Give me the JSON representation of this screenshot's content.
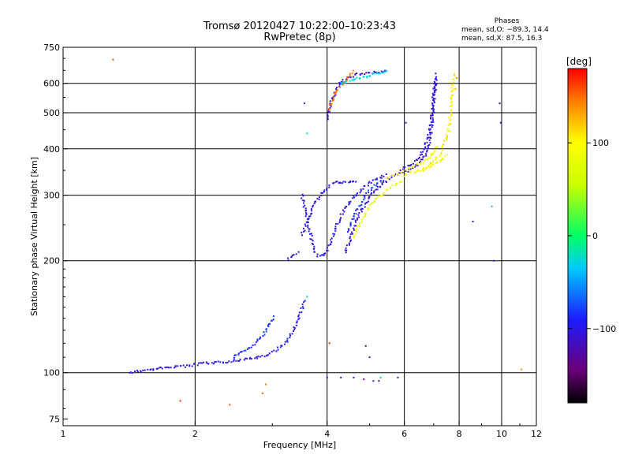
{
  "header": {
    "title": "Tromsø 20120427 10:22:00–10:23:43",
    "subtitle": "RwPretec (8p)"
  },
  "phases": {
    "heading": "Phases",
    "line_o": "mean, sd,O: −89.3, 14.4",
    "line_x": "mean, sd,X:  87.5, 16.3"
  },
  "colorbar": {
    "label": "[deg]",
    "ticks": [
      100,
      0,
      -100
    ],
    "tick_labels": [
      "100",
      "0",
      "−100"
    ],
    "range": [
      -180,
      180
    ]
  },
  "chart_data": {
    "type": "scatter",
    "xlabel": "Frequency [MHz]",
    "ylabel": "Stationary phase Virtual Height [km]",
    "xscale": "log",
    "yscale": "log",
    "xlim": [
      1,
      12
    ],
    "ylim": [
      72,
      750
    ],
    "xticks": [
      1,
      2,
      4,
      6,
      8,
      10,
      12
    ],
    "xtick_labels": [
      "1",
      "2",
      "4",
      "6",
      "8",
      "10",
      "12"
    ],
    "yticks": [
      75,
      100,
      200,
      300,
      400,
      500,
      600,
      750
    ],
    "ytick_labels": [
      "75",
      "100",
      "200",
      "300",
      "400",
      "500",
      "600",
      "750"
    ],
    "grid": true,
    "colorscale": "rainbow",
    "color_variable": "phase [deg]",
    "traces": [
      {
        "phase": -100,
        "points": [
          [
            1.42,
            100
          ],
          [
            1.5,
            101
          ],
          [
            1.6,
            102
          ],
          [
            1.7,
            103
          ],
          [
            1.8,
            104
          ],
          [
            1.9,
            104
          ],
          [
            2.0,
            105
          ],
          [
            2.1,
            106
          ],
          [
            2.2,
            106
          ],
          [
            2.35,
            107
          ],
          [
            2.5,
            108
          ],
          [
            2.65,
            109
          ],
          [
            2.8,
            110
          ],
          [
            2.95,
            111
          ]
        ]
      },
      {
        "phase": -95,
        "points": [
          [
            2.95,
            112
          ],
          [
            3.05,
            115
          ],
          [
            3.15,
            118
          ],
          [
            3.25,
            122
          ],
          [
            3.32,
            128
          ],
          [
            3.4,
            134
          ],
          [
            3.45,
            140
          ],
          [
            3.5,
            148
          ],
          [
            3.55,
            158
          ]
        ]
      },
      {
        "phase": -85,
        "points": [
          [
            2.45,
            110
          ],
          [
            2.55,
            113
          ],
          [
            2.65,
            116
          ],
          [
            2.75,
            120
          ],
          [
            2.85,
            126
          ],
          [
            2.95,
            134
          ],
          [
            3.05,
            142
          ]
        ]
      },
      {
        "phase": -105,
        "points": [
          [
            3.25,
            201
          ],
          [
            3.35,
            206
          ],
          [
            3.45,
            212
          ]
        ]
      },
      {
        "phase": -100,
        "points": [
          [
            3.5,
            235
          ],
          [
            3.6,
            255
          ],
          [
            3.7,
            275
          ],
          [
            3.8,
            292
          ],
          [
            3.9,
            305
          ],
          [
            4.0,
            315
          ],
          [
            4.1,
            322
          ],
          [
            4.2,
            325
          ],
          [
            4.35,
            325
          ],
          [
            4.5,
            325
          ],
          [
            4.7,
            326
          ]
        ]
      },
      {
        "phase": -100,
        "points": [
          [
            3.5,
            300
          ],
          [
            3.55,
            280
          ],
          [
            3.6,
            260
          ],
          [
            3.65,
            240
          ],
          [
            3.7,
            225
          ],
          [
            3.75,
            212
          ],
          [
            3.8,
            206
          ],
          [
            3.9,
            206
          ],
          [
            4.0,
            212
          ],
          [
            4.1,
            228
          ],
          [
            4.2,
            248
          ],
          [
            4.35,
            270
          ],
          [
            4.5,
            288
          ],
          [
            4.7,
            305
          ],
          [
            4.9,
            318
          ],
          [
            5.1,
            328
          ],
          [
            5.3,
            336
          ],
          [
            5.5,
            342
          ]
        ]
      },
      {
        "phase": -80,
        "points": [
          [
            4.45,
            240
          ],
          [
            4.6,
            262
          ],
          [
            4.75,
            282
          ],
          [
            4.9,
            300
          ],
          [
            5.05,
            313
          ],
          [
            5.2,
            323
          ],
          [
            5.4,
            332
          ]
        ]
      },
      {
        "phase": -110,
        "points": [
          [
            4.4,
            210
          ],
          [
            4.55,
            235
          ],
          [
            4.7,
            260
          ],
          [
            4.85,
            280
          ],
          [
            5.0,
            298
          ],
          [
            5.2,
            312
          ],
          [
            5.4,
            325
          ],
          [
            5.6,
            335
          ],
          [
            5.8,
            342
          ],
          [
            6.0,
            347
          ],
          [
            6.2,
            352
          ],
          [
            6.4,
            360
          ],
          [
            6.6,
            375
          ],
          [
            6.8,
            400
          ],
          [
            6.9,
            430
          ],
          [
            6.95,
            470
          ],
          [
            7.0,
            520
          ],
          [
            7.05,
            580
          ],
          [
            7.1,
            640
          ]
        ]
      },
      {
        "phase": -100,
        "points": [
          [
            5.9,
            352
          ],
          [
            6.1,
            358
          ],
          [
            6.3,
            366
          ],
          [
            6.5,
            380
          ],
          [
            6.7,
            405
          ],
          [
            6.85,
            450
          ],
          [
            6.95,
            500
          ],
          [
            7.0,
            560
          ],
          [
            7.05,
            620
          ]
        ]
      },
      {
        "phase": 80,
        "points": [
          [
            4.6,
            232
          ],
          [
            4.75,
            250
          ],
          [
            4.9,
            268
          ],
          [
            5.05,
            283
          ],
          [
            5.2,
            295
          ],
          [
            5.4,
            305
          ],
          [
            5.6,
            315
          ],
          [
            5.8,
            322
          ],
          [
            6.0,
            326
          ]
        ]
      },
      {
        "phase": 100,
        "points": [
          [
            5.5,
            335
          ],
          [
            5.7,
            340
          ],
          [
            5.9,
            345
          ],
          [
            6.1,
            352
          ],
          [
            6.3,
            358
          ],
          [
            6.5,
            365
          ],
          [
            6.7,
            372
          ],
          [
            6.9,
            382
          ],
          [
            7.05,
            395
          ],
          [
            7.15,
            410
          ]
        ]
      },
      {
        "phase": 105,
        "points": [
          [
            6.6,
            350
          ],
          [
            6.8,
            360
          ],
          [
            7.0,
            372
          ],
          [
            7.2,
            385
          ],
          [
            7.35,
            405
          ],
          [
            7.5,
            430
          ],
          [
            7.6,
            460
          ],
          [
            7.65,
            500
          ],
          [
            7.7,
            550
          ],
          [
            7.75,
            600
          ],
          [
            7.8,
            640
          ]
        ]
      },
      {
        "phase": 95,
        "points": [
          [
            6.0,
            340
          ],
          [
            6.2,
            345
          ],
          [
            6.4,
            348
          ],
          [
            6.6,
            352
          ],
          [
            6.8,
            356
          ],
          [
            7.0,
            362
          ],
          [
            7.2,
            370
          ],
          [
            7.4,
            378
          ],
          [
            7.5,
            390
          ]
        ]
      },
      {
        "phase": -110,
        "points": [
          [
            4.0,
            480
          ],
          [
            4.1,
            540
          ],
          [
            4.2,
            580
          ],
          [
            4.3,
            605
          ],
          [
            4.5,
            625
          ],
          [
            4.7,
            635
          ],
          [
            4.9,
            640
          ],
          [
            5.1,
            642
          ],
          [
            5.3,
            644
          ],
          [
            5.5,
            645
          ]
        ]
      },
      {
        "phase": 150,
        "points": [
          [
            4.05,
            510
          ],
          [
            4.15,
            560
          ],
          [
            4.6,
            650
          ]
        ]
      },
      {
        "phase": -30,
        "points": [
          [
            4.3,
            600
          ],
          [
            5.55,
            650
          ]
        ]
      }
    ],
    "scatter_points": [
      [
        1.3,
        695,
        160
      ],
      [
        1.85,
        84,
        170
      ],
      [
        2.4,
        82,
        160
      ],
      [
        2.85,
        88,
        150
      ],
      [
        2.9,
        93,
        150
      ],
      [
        3.55,
        530,
        -90
      ],
      [
        3.6,
        440,
        -30
      ],
      [
        3.6,
        160,
        -40
      ],
      [
        4.05,
        120,
        170
      ],
      [
        4.0,
        97,
        -110
      ],
      [
        4.3,
        97,
        -120
      ],
      [
        4.6,
        97,
        -120
      ],
      [
        4.85,
        96,
        -140
      ],
      [
        4.9,
        118,
        -110
      ],
      [
        5.0,
        110,
        -110
      ],
      [
        5.1,
        95,
        -90
      ],
      [
        5.3,
        97,
        -30
      ],
      [
        5.25,
        95,
        -140
      ],
      [
        5.8,
        97,
        -120
      ],
      [
        6.05,
        470,
        -100
      ],
      [
        8.6,
        255,
        -100
      ],
      [
        9.5,
        280,
        -30
      ],
      [
        9.6,
        200,
        -90
      ],
      [
        9.9,
        530,
        -130
      ],
      [
        9.95,
        470,
        -110
      ],
      [
        11.1,
        102,
        140
      ],
      [
        7.9,
        620,
        140
      ],
      [
        7.85,
        580,
        120
      ]
    ]
  }
}
